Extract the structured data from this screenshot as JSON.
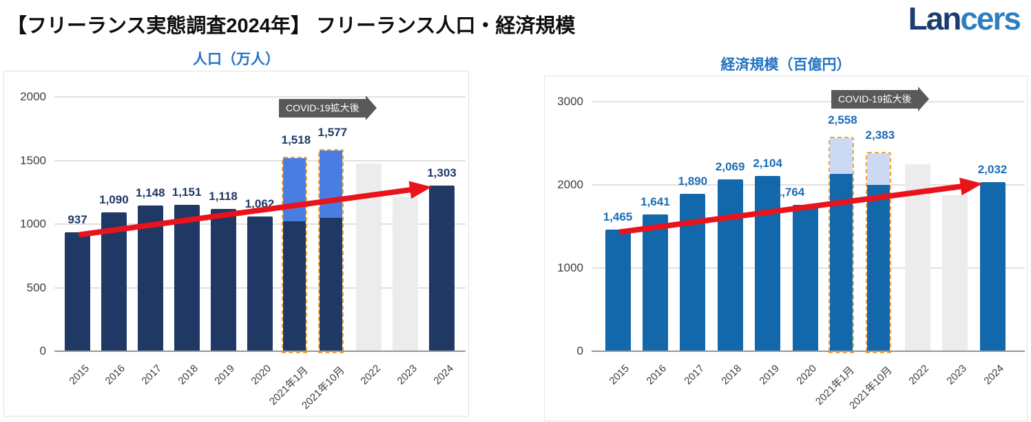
{
  "header": {
    "title": "【フリーランス実態調査2024年】 フリーランス人口・経済規模",
    "logo_part1": "Lan",
    "logo_part2": "cers"
  },
  "colors": {
    "title_blue": "#2173c2",
    "navy_bar": "#1f3864",
    "bright_blue_stack": "#4a7de2",
    "main_blue_bar": "#1268ab",
    "light_blue_stack": "#cbd9f2",
    "placeholder_gray": "#ececec",
    "dashed_orange": "#f2a33c",
    "arrow_red": "#e9131b",
    "badge_gray": "#595959",
    "label_navy": "#1f3864",
    "label_blue": "#1a6cb5",
    "logo_navy": "#1b3c6e",
    "logo_blue": "#2d7fc1",
    "grid_gray": "#e0e0e0",
    "axis_line_gray": "#969696",
    "axis_text": "#3c3c3c",
    "header_black": "#0d0d0d"
  },
  "chart_data": [
    {
      "type": "bar",
      "title": "人口（万人）",
      "ylabel": "万人",
      "ylim": [
        0,
        2000
      ],
      "yticks": [
        0,
        500,
        1000,
        1500,
        2000
      ],
      "grid": true,
      "annotation": "COVID-19拡大後",
      "trend_arrow": true,
      "bar_color_key": "navy_bar",
      "stack_color_key": "bright_blue_stack",
      "label_color_key": "label_navy",
      "categories": [
        "2015",
        "2016",
        "2017",
        "2018",
        "2019",
        "2020",
        "2021年1月",
        "2021年10月",
        "2022",
        "2023",
        "2024"
      ],
      "bars": [
        {
          "category": "2015",
          "value": 937,
          "label": "937",
          "style": "solid"
        },
        {
          "category": "2016",
          "value": 1090,
          "label": "1,090",
          "style": "solid"
        },
        {
          "category": "2017",
          "value": 1148,
          "label": "1,148",
          "style": "solid"
        },
        {
          "category": "2018",
          "value": 1151,
          "label": "1,151",
          "style": "solid"
        },
        {
          "category": "2019",
          "value": 1118,
          "label": "1,118",
          "style": "solid"
        },
        {
          "category": "2020",
          "value": 1062,
          "label": "1,062",
          "style": "solid"
        },
        {
          "category": "2021年1月",
          "value": 1518,
          "base_value": 1020,
          "label": "1,518",
          "style": "stacked",
          "label_dy": -8
        },
        {
          "category": "2021年10月",
          "value": 1577,
          "base_value": 1050,
          "label": "1,577",
          "style": "stacked",
          "label_dy": -8
        },
        {
          "category": "2022",
          "value": 1476,
          "label": "",
          "style": "placeholder"
        },
        {
          "category": "2023",
          "value": 1216,
          "label": "",
          "style": "placeholder"
        },
        {
          "category": "2024",
          "value": 1303,
          "label": "1,303",
          "style": "solid"
        }
      ]
    },
    {
      "type": "bar",
      "title": "経済規模（百億円）",
      "ylabel": "百億円",
      "ylim": [
        0,
        3000
      ],
      "yticks": [
        0,
        1000,
        2000,
        3000
      ],
      "grid": true,
      "annotation": "COVID-19拡大後",
      "trend_arrow": true,
      "bar_color_key": "main_blue_bar",
      "stack_color_key": "light_blue_stack",
      "label_color_key": "label_blue",
      "categories": [
        "2015",
        "2016",
        "2017",
        "2018",
        "2019",
        "2020",
        "2021年1月",
        "2021年10月",
        "2022",
        "2023",
        "2024"
      ],
      "bars": [
        {
          "category": "2015",
          "value": 1465,
          "label": "1,465",
          "style": "solid"
        },
        {
          "category": "2016",
          "value": 1641,
          "label": "1,641",
          "style": "solid"
        },
        {
          "category": "2017",
          "value": 1890,
          "label": "1,890",
          "style": "solid"
        },
        {
          "category": "2018",
          "value": 2069,
          "label": "2,069",
          "style": "solid"
        },
        {
          "category": "2019",
          "value": 2104,
          "label": "2,104",
          "style": "solid"
        },
        {
          "category": "2020",
          "value": 1764,
          "label": "1,764",
          "style": "solid",
          "label_dx": -22
        },
        {
          "category": "2021年1月",
          "value": 2558,
          "base_value": 2130,
          "label": "2,558",
          "style": "stacked",
          "label_dy": -8
        },
        {
          "category": "2021年10月",
          "value": 2383,
          "base_value": 2000,
          "label": "2,383",
          "style": "stacked",
          "label_dy": -8
        },
        {
          "category": "2022",
          "value": 2250,
          "label": "",
          "style": "placeholder"
        },
        {
          "category": "2023",
          "value": 1880,
          "label": "",
          "style": "placeholder"
        },
        {
          "category": "2024",
          "value": 2032,
          "label": "2,032",
          "style": "solid"
        }
      ]
    }
  ]
}
